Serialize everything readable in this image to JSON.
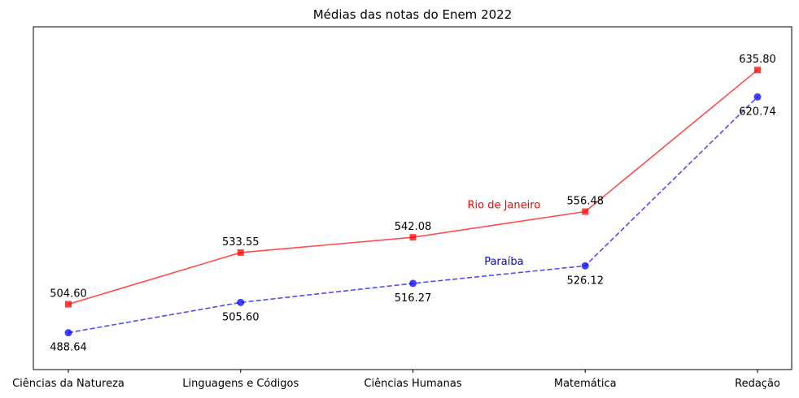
{
  "chart_data": {
    "type": "line",
    "title": "Médias das notas do Enem 2022",
    "xlabel": "",
    "ylabel": "",
    "categories": [
      "Ciências da Natureza",
      "Linguagens e Códigos",
      "Ciências Humanas",
      "Matemática",
      "Redação"
    ],
    "ylim": [
      468,
      660
    ],
    "grid": false,
    "y_ticks_visible": false,
    "series": [
      {
        "name": "Rio de Janeiro",
        "values": [
          504.6,
          533.55,
          542.08,
          556.48,
          635.8
        ],
        "labels": [
          "504.60",
          "533.55",
          "542.08",
          "556.48",
          "635.80"
        ],
        "color": "#ff0000",
        "line_style": "solid",
        "marker": "square",
        "label_position": "above"
      },
      {
        "name": "Paraíba",
        "values": [
          488.64,
          505.6,
          516.27,
          526.12,
          620.74
        ],
        "labels": [
          "488.64",
          "505.60",
          "516.27",
          "526.12",
          "620.74"
        ],
        "color": "#0000ff",
        "line_style": "dashed",
        "marker": "circle",
        "label_position": "below"
      }
    ]
  }
}
